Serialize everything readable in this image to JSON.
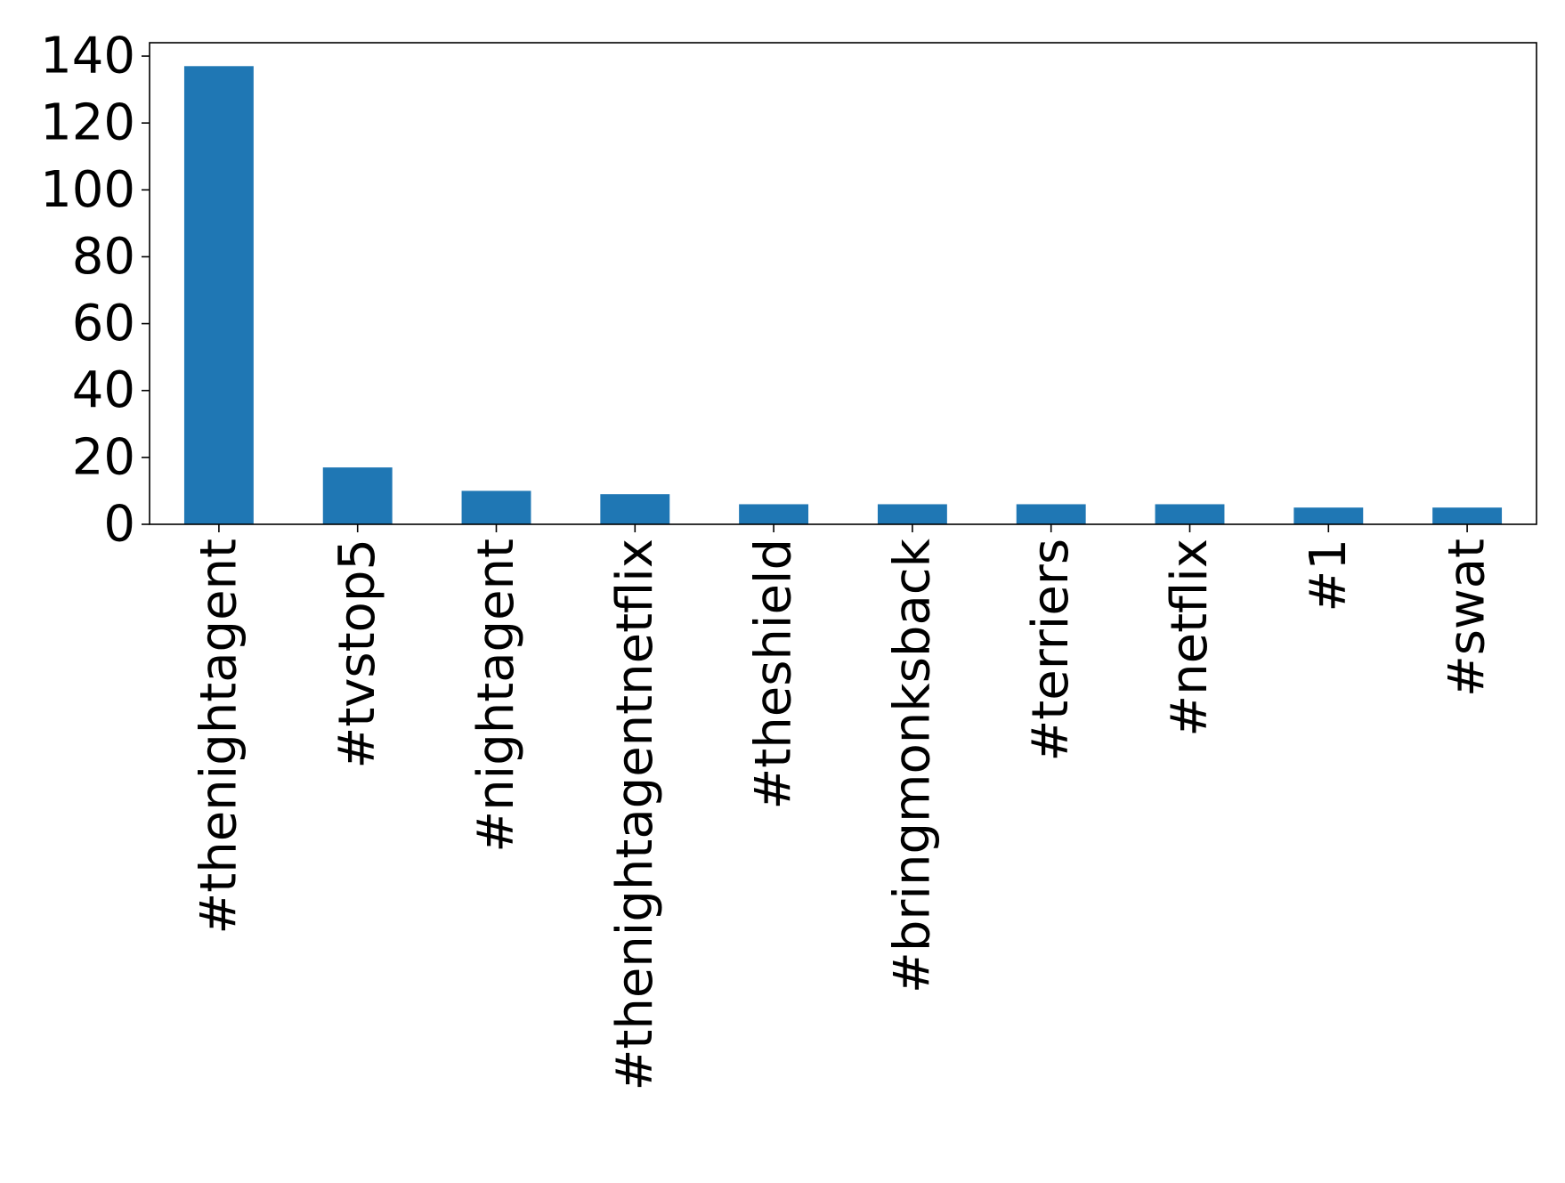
{
  "chart_data": {
    "type": "bar",
    "title": "",
    "xlabel": "",
    "ylabel": "",
    "categories": [
      "#thenightagent",
      "#tvstop5",
      "#nightagent",
      "#thenightagentnetflix",
      "#theshield",
      "#bringmonksback",
      "#terriers",
      "#netflix",
      "#1",
      "#swat"
    ],
    "values": [
      137,
      17,
      10,
      9,
      6,
      6,
      6,
      6,
      5,
      5
    ],
    "ylim": [
      0,
      144
    ],
    "yticks": [
      0,
      20,
      40,
      60,
      80,
      100,
      120,
      140
    ],
    "grid": false,
    "legend": "none",
    "bar_color": "#1f77b4"
  }
}
